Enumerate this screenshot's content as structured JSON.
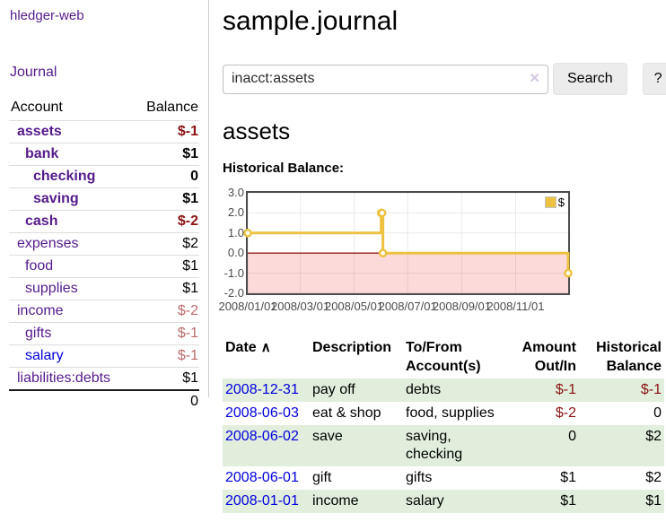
{
  "app": {
    "brand": "hledger-web",
    "nav_journal": "Journal"
  },
  "sidebar": {
    "header": {
      "account": "Account",
      "balance": "Balance"
    },
    "accounts": [
      {
        "name": "assets",
        "indent": 1,
        "bold": true,
        "balance": "$-1",
        "neg": "strong",
        "link": "purple"
      },
      {
        "name": "bank",
        "indent": 2,
        "bold": true,
        "balance": "$1",
        "neg": "none",
        "link": "purple"
      },
      {
        "name": "checking",
        "indent": 3,
        "bold": true,
        "balance": "0",
        "neg": "none",
        "link": "purple"
      },
      {
        "name": "saving",
        "indent": 3,
        "bold": true,
        "balance": "$1",
        "neg": "none",
        "link": "purple"
      },
      {
        "name": "cash",
        "indent": 2,
        "bold": true,
        "balance": "$-2",
        "neg": "strong",
        "link": "purple"
      },
      {
        "name": "expenses",
        "indent": 1,
        "bold": false,
        "balance": "$2",
        "neg": "none",
        "link": "purple"
      },
      {
        "name": "food",
        "indent": 2,
        "bold": false,
        "balance": "$1",
        "neg": "none",
        "link": "purple"
      },
      {
        "name": "supplies",
        "indent": 2,
        "bold": false,
        "balance": "$1",
        "neg": "none",
        "link": "purple"
      },
      {
        "name": "income",
        "indent": 1,
        "bold": false,
        "balance": "$-2",
        "neg": "light",
        "link": "purple"
      },
      {
        "name": "gifts",
        "indent": 2,
        "bold": false,
        "balance": "$-1",
        "neg": "light",
        "link": "purple"
      },
      {
        "name": "salary",
        "indent": 2,
        "bold": false,
        "balance": "$-1",
        "neg": "light",
        "link": "blue"
      },
      {
        "name": "liabilities:debts",
        "indent": 1,
        "bold": false,
        "balance": "$1",
        "neg": "none",
        "link": "purple"
      }
    ],
    "total": "0"
  },
  "header": {
    "title": "sample.journal"
  },
  "search": {
    "value": "inacct:assets",
    "clear_icon": "✕",
    "button_label": "Search",
    "help_label": "?"
  },
  "account_page": {
    "heading": "assets",
    "chart_label": "Historical Balance:"
  },
  "chart_data": {
    "type": "line",
    "title": "Historical Balance",
    "legend": [
      {
        "label": "$",
        "color": "#edc240"
      }
    ],
    "x_range": [
      "2008-01-01",
      "2008-12-31"
    ],
    "ylim": [
      -2,
      3
    ],
    "y_ticks": [
      {
        "label": "3.0",
        "v": 3
      },
      {
        "label": "2.0",
        "v": 2
      },
      {
        "label": "1.0",
        "v": 1
      },
      {
        "label": "0.0",
        "v": 0
      },
      {
        "label": "-1.0",
        "v": -1
      },
      {
        "label": "-2.0",
        "v": -2
      }
    ],
    "x_ticks": [
      {
        "label": "2008/01/01",
        "f": 0.0
      },
      {
        "label": "2008/03/01",
        "f": 0.164
      },
      {
        "label": "2008/05/01",
        "f": 0.332
      },
      {
        "label": "2008/07/01",
        "f": 0.499
      },
      {
        "label": "2008/09/01",
        "f": 0.668
      },
      {
        "label": "2008/11/01",
        "f": 0.836
      }
    ],
    "step": true,
    "points": [
      {
        "date": "2008-01-01",
        "f": 0.0,
        "v": 1
      },
      {
        "date": "2008-06-01",
        "f": 0.4164,
        "v": 2
      },
      {
        "date": "2008-06-02",
        "f": 0.4192,
        "v": 2
      },
      {
        "date": "2008-06-03",
        "f": 0.4219,
        "v": 0
      },
      {
        "date": "2008-12-31",
        "f": 1.0,
        "v": -1
      }
    ],
    "colors": {
      "line": "#edc240",
      "marker_fill": "#ffffff",
      "zero_line": "#8f2020",
      "negative_fill": "#fcdada",
      "grid": "rgba(0,0,0,0.08)",
      "border": "#4c4c4c"
    }
  },
  "register": {
    "columns": {
      "date": "Date",
      "sort_icon": "∧",
      "description": "Description",
      "tofrom_line1": "To/From",
      "tofrom_line2": "Account(s)",
      "amount_line1": "Amount",
      "amount_line2": "Out/In",
      "hist_line1": "Historical",
      "hist_line2": "Balance"
    },
    "rows": [
      {
        "date": "2008-12-31",
        "description": "pay off",
        "accounts": "debts",
        "amount": "$-1",
        "amount_neg": true,
        "balance": "$-1",
        "balance_neg": true,
        "shade": true
      },
      {
        "date": "2008-06-03",
        "description": "eat & shop",
        "accounts": "food, supplies",
        "amount": "$-2",
        "amount_neg": true,
        "balance": "0",
        "balance_neg": false,
        "shade": false
      },
      {
        "date": "2008-06-02",
        "description": "save",
        "accounts": "saving, checking",
        "amount": "0",
        "amount_neg": false,
        "balance": "$2",
        "balance_neg": false,
        "shade": true
      },
      {
        "date": "2008-06-01",
        "description": "gift",
        "accounts": "gifts",
        "amount": "$1",
        "amount_neg": false,
        "balance": "$2",
        "balance_neg": false,
        "shade": false
      },
      {
        "date": "2008-01-01",
        "description": "income",
        "accounts": "salary",
        "amount": "$1",
        "amount_neg": false,
        "balance": "$1",
        "balance_neg": false,
        "shade": true
      }
    ]
  }
}
